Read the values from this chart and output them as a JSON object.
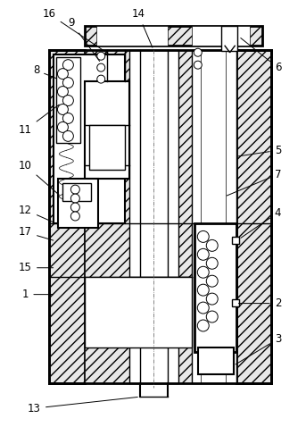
{
  "bg_color": "#ffffff",
  "lc": "#000000",
  "fig_width": 3.43,
  "fig_height": 4.78,
  "dpi": 100
}
